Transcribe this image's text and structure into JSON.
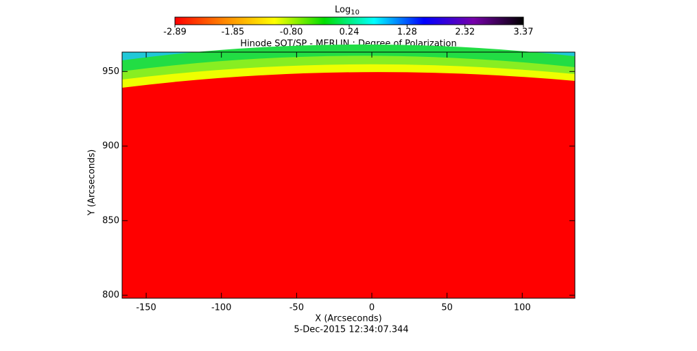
{
  "chart_data": {
    "type": "image",
    "title": "Hinode SOT/SP - MERLIN : Degree of Polarization",
    "x_label": "X (Arcseconds)",
    "y_label": "Y (Arcseconds)",
    "date": "5-Dec-2015 12:34:07.344",
    "xlim": [
      -166,
      135
    ],
    "xticks": [
      -150,
      -100,
      -50,
      0,
      50,
      100
    ],
    "ylim": [
      798,
      963
    ],
    "yticks": [
      800,
      850,
      900,
      950
    ],
    "colorbar_label": "Log",
    "colorbar_label_sub": "10",
    "colorbar_lim": [
      -2.89,
      3.37
    ],
    "colorbar_ticks": [
      -2.89,
      -1.85,
      {
        "value": -0.8,
        "label": "-0.80"
      },
      0.24,
      1.28,
      2.32,
      3.37
    ],
    "colormap": [
      "#ff0000",
      "#ff8800",
      "#ffff00",
      "#00dd00",
      "#00ffff",
      "#0000ff",
      "#7700aa",
      "#000000"
    ]
  }
}
